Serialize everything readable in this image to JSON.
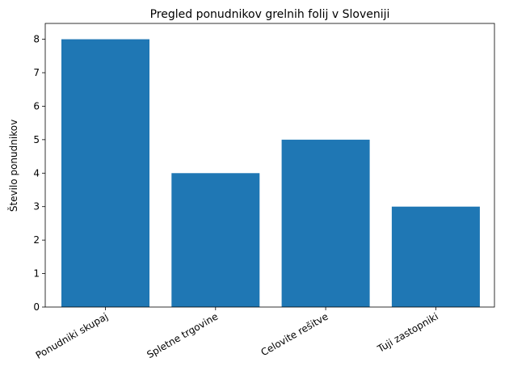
{
  "chart_data": {
    "type": "bar",
    "title": "Pregled ponudnikov grelnih folij v Sloveniji",
    "ylabel": "Število ponudnikov",
    "categories": [
      "Ponudniki skupaj",
      "Spletne trgovine",
      "Celovite rešitve",
      "Tuji zastopniki"
    ],
    "values": [
      8,
      4,
      5,
      3
    ],
    "color": "#1f77b4",
    "ylim": [
      0,
      8.4
    ],
    "yticks": [
      0,
      1,
      2,
      3,
      4,
      5,
      6,
      7,
      8
    ],
    "grid": false
  }
}
